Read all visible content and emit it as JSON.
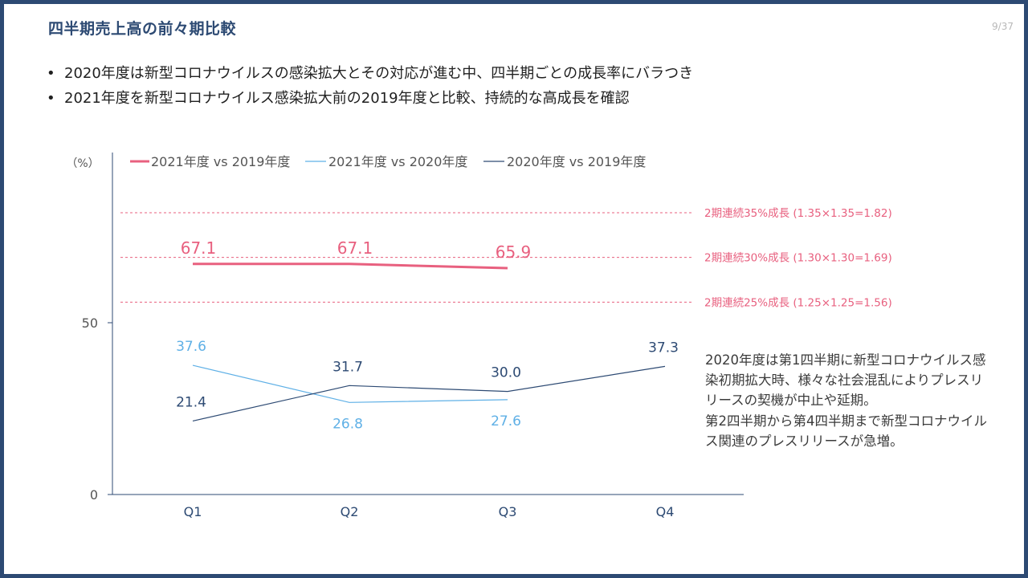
{
  "title": "四半期売上高の前々期比較",
  "page_number": "9/37",
  "bullets": [
    "2020年度は新型コロナウイルスの感染拡大とその対応が進む中、四半期ごとの成長率にバラつき",
    "2021年度を新型コロナウイルス感染拡大前の2019年度と比較、持続的な高成長を確認"
  ],
  "notes": [
    "2020年度は第1四半期に新型コロナウイルス感染初期拡大時、様々な社会混乱によりプレスリリースの契機が中止や延期。",
    "第2四半期から第4四半期まで新型コロナウイルス関連のプレスリリースが急増。"
  ],
  "colors": {
    "frame": "#2d4a73",
    "pink": "#e8607f",
    "light_blue": "#5fb0e6",
    "navy": "#2d4a73"
  },
  "chart_data": {
    "type": "line",
    "ylabel": "（%）",
    "categories": [
      "Q1",
      "Q2",
      "Q3",
      "Q4"
    ],
    "y_ticks": [
      0,
      50
    ],
    "ylim": [
      0,
      100
    ],
    "series": [
      {
        "name": "2021年度 vs 2019年度",
        "color": "#e8607f",
        "values": [
          67.1,
          67.1,
          65.9,
          null
        ],
        "labels": [
          "67.1",
          "67.1",
          "65.9",
          null
        ],
        "label_pos": "above",
        "thick": true
      },
      {
        "name": "2021年度 vs 2020年度",
        "color": "#5fb0e6",
        "values": [
          37.6,
          26.8,
          27.6,
          null
        ],
        "labels": [
          "37.6",
          "26.8",
          "27.6",
          null
        ],
        "label_pos": [
          "above",
          "below",
          "below",
          null
        ],
        "thick": false
      },
      {
        "name": "2020年度 vs 2019年度",
        "color": "#2d4a73",
        "values": [
          21.4,
          31.7,
          30.0,
          37.3
        ],
        "labels": [
          "21.4",
          "31.7",
          "30.0",
          "37.3"
        ],
        "label_pos": [
          "above",
          "above",
          "above",
          "above"
        ],
        "thick": false
      }
    ],
    "reference_lines": [
      {
        "value": 82,
        "label": "2期連続35%成長 (1.35×1.35=1.82)"
      },
      {
        "value": 69,
        "label": "2期連続30%成長 (1.30×1.30=1.69)"
      },
      {
        "value": 56,
        "label": "2期連続25%成長 (1.25×1.25=1.56)"
      }
    ],
    "legend_position": "top"
  }
}
